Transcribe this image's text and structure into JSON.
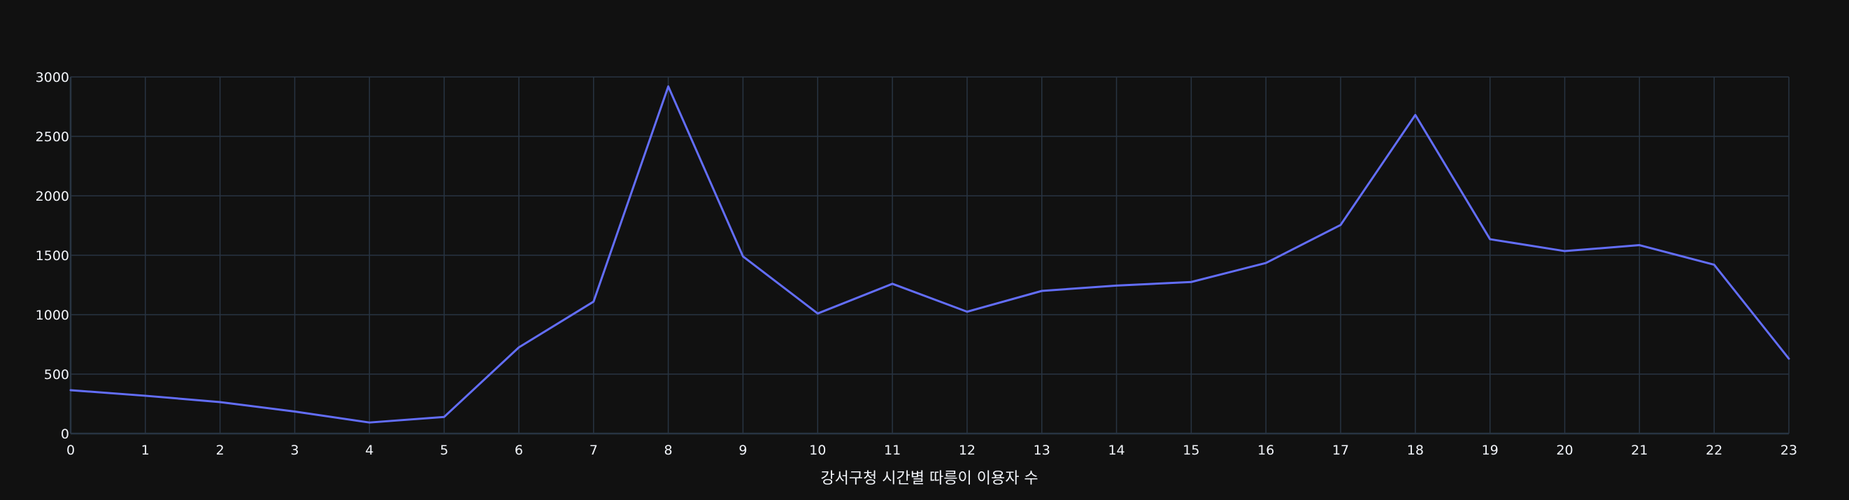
{
  "colors": {
    "background": "#111111",
    "grid": "#283442",
    "line": "#636efa",
    "text": "#f2f5fa"
  },
  "chart_data": {
    "type": "line",
    "title": "",
    "xlabel": "강서구청 시간별 따릉이 이용자 수",
    "ylabel": "",
    "x": [
      0,
      1,
      2,
      3,
      4,
      5,
      6,
      7,
      8,
      9,
      10,
      11,
      12,
      13,
      14,
      15,
      16,
      17,
      18,
      19,
      20,
      21,
      22,
      23
    ],
    "series": [
      {
        "values": [
          365,
          318,
          265,
          185,
          93,
          140,
          725,
          1110,
          2920,
          1490,
          1010,
          1260,
          1025,
          1200,
          1245,
          1275,
          1435,
          1755,
          2680,
          1635,
          1535,
          1585,
          1420,
          630
        ]
      }
    ],
    "xlim": [
      0,
      23
    ],
    "ylim": [
      0,
      3000
    ],
    "x_ticks": [
      0,
      1,
      2,
      3,
      4,
      5,
      6,
      7,
      8,
      9,
      10,
      11,
      12,
      13,
      14,
      15,
      16,
      17,
      18,
      19,
      20,
      21,
      22,
      23
    ],
    "y_ticks": [
      0,
      500,
      1000,
      1500,
      2000,
      2500,
      3000
    ],
    "grid": true,
    "legend": "none"
  }
}
